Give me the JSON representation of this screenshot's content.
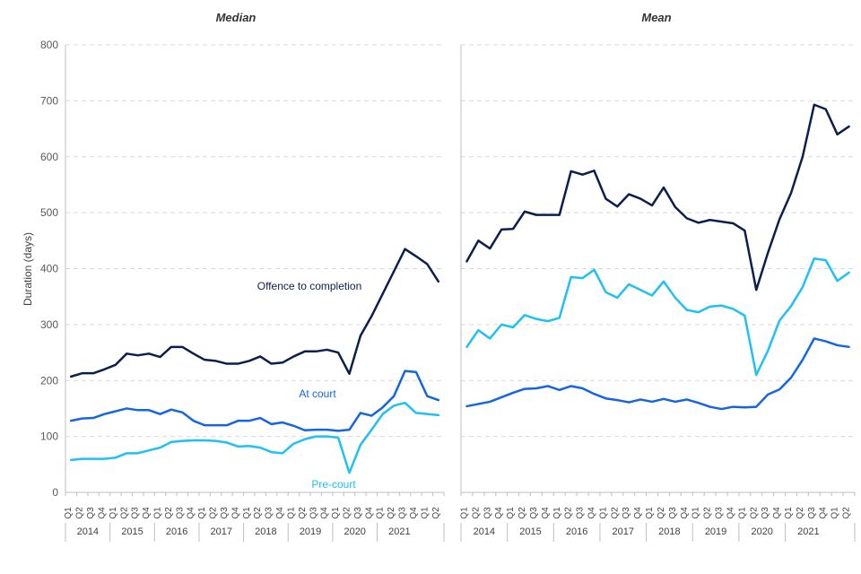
{
  "chart_data": {
    "type": "line",
    "ylabel": "Duration (days)",
    "ylim": [
      0,
      800
    ],
    "yticks": [
      0,
      100,
      200,
      300,
      400,
      500,
      600,
      700,
      800
    ],
    "grid": true,
    "x": [
      "Q1",
      "Q2",
      "Q3",
      "Q4",
      "Q1",
      "Q2",
      "Q3",
      "Q4",
      "Q1",
      "Q2",
      "Q3",
      "Q4",
      "Q1",
      "Q2",
      "Q3",
      "Q4",
      "Q1",
      "Q2",
      "Q3",
      "Q4",
      "Q1",
      "Q2",
      "Q3",
      "Q4",
      "Q1",
      "Q2",
      "Q3",
      "Q4",
      "Q1",
      "Q2",
      "Q3",
      "Q4",
      "Q1",
      "Q2"
    ],
    "year_groups": [
      {
        "label": "2014",
        "start": 0,
        "end": 3
      },
      {
        "label": "2015",
        "start": 4,
        "end": 7
      },
      {
        "label": "2016",
        "start": 8,
        "end": 11
      },
      {
        "label": "2017",
        "start": 12,
        "end": 15
      },
      {
        "label": "2018",
        "start": 16,
        "end": 19
      },
      {
        "label": "2019",
        "start": 20,
        "end": 23
      },
      {
        "label": "2020",
        "start": 24,
        "end": 27
      },
      {
        "label": "2021",
        "start": 28,
        "end": 31
      }
    ],
    "colors": {
      "offence_to_completion": "#0b1f4f",
      "at_court": "#1464e6",
      "pre_court": "#1ec0f5"
    },
    "panels": [
      {
        "title": "Median",
        "annotations": {
          "offence_to_completion": "Offence to completion",
          "at_court": "At court",
          "pre_court": "Pre-court"
        },
        "series": [
          {
            "key": "offence_to_completion",
            "values": [
              207,
              213,
              213,
              220,
              228,
              248,
              245,
              248,
              242,
              260,
              260,
              248,
              237,
              235,
              230,
              230,
              235,
              243,
              230,
              232,
              243,
              252,
              252,
              255,
              250,
              212,
              280,
              315,
              355,
              395,
              435,
              422,
              408,
              377
            ]
          },
          {
            "key": "at_court",
            "values": [
              128,
              132,
              133,
              140,
              145,
              150,
              147,
              147,
              140,
              148,
              143,
              128,
              120,
              120,
              120,
              128,
              128,
              133,
              122,
              125,
              119,
              111,
              112,
              112,
              110,
              112,
              142,
              137,
              152,
              172,
              217,
              215,
              172,
              165
            ]
          },
          {
            "key": "pre_court",
            "values": [
              58,
              60,
              60,
              60,
              62,
              70,
              70,
              75,
              80,
              90,
              92,
              93,
              93,
              92,
              89,
              82,
              83,
              80,
              72,
              70,
              87,
              95,
              100,
              100,
              98,
              35,
              85,
              112,
              140,
              155,
              160,
              142,
              140,
              138
            ]
          }
        ]
      },
      {
        "title": "Mean",
        "annotations": {},
        "series": [
          {
            "key": "offence_to_completion",
            "values": [
              413,
              450,
              436,
              470,
              471,
              502,
              496,
              496,
              496,
              574,
              568,
              575,
              525,
              511,
              533,
              525,
              513,
              545,
              510,
              490,
              482,
              487,
              484,
              481,
              468,
              362,
              428,
              488,
              535,
              600,
              693,
              685,
              640,
              654
            ]
          },
          {
            "key": "at_court",
            "values": [
              154,
              158,
              162,
              170,
              178,
              185,
              186,
              190,
              183,
              190,
              186,
              176,
              168,
              165,
              161,
              166,
              162,
              167,
              162,
              166,
              160,
              153,
              149,
              153,
              152,
              153,
              175,
              184,
              205,
              237,
              275,
              270,
              263,
              260
            ]
          },
          {
            "key": "pre_court",
            "values": [
              260,
              290,
              275,
              300,
              295,
              317,
              310,
              306,
              312,
              385,
              383,
              398,
              358,
              348,
              372,
              362,
              352,
              377,
              348,
              326,
              322,
              332,
              334,
              328,
              316,
              210,
              253,
              307,
              333,
              367,
              418,
              415,
              378,
              393
            ]
          }
        ]
      }
    ]
  }
}
